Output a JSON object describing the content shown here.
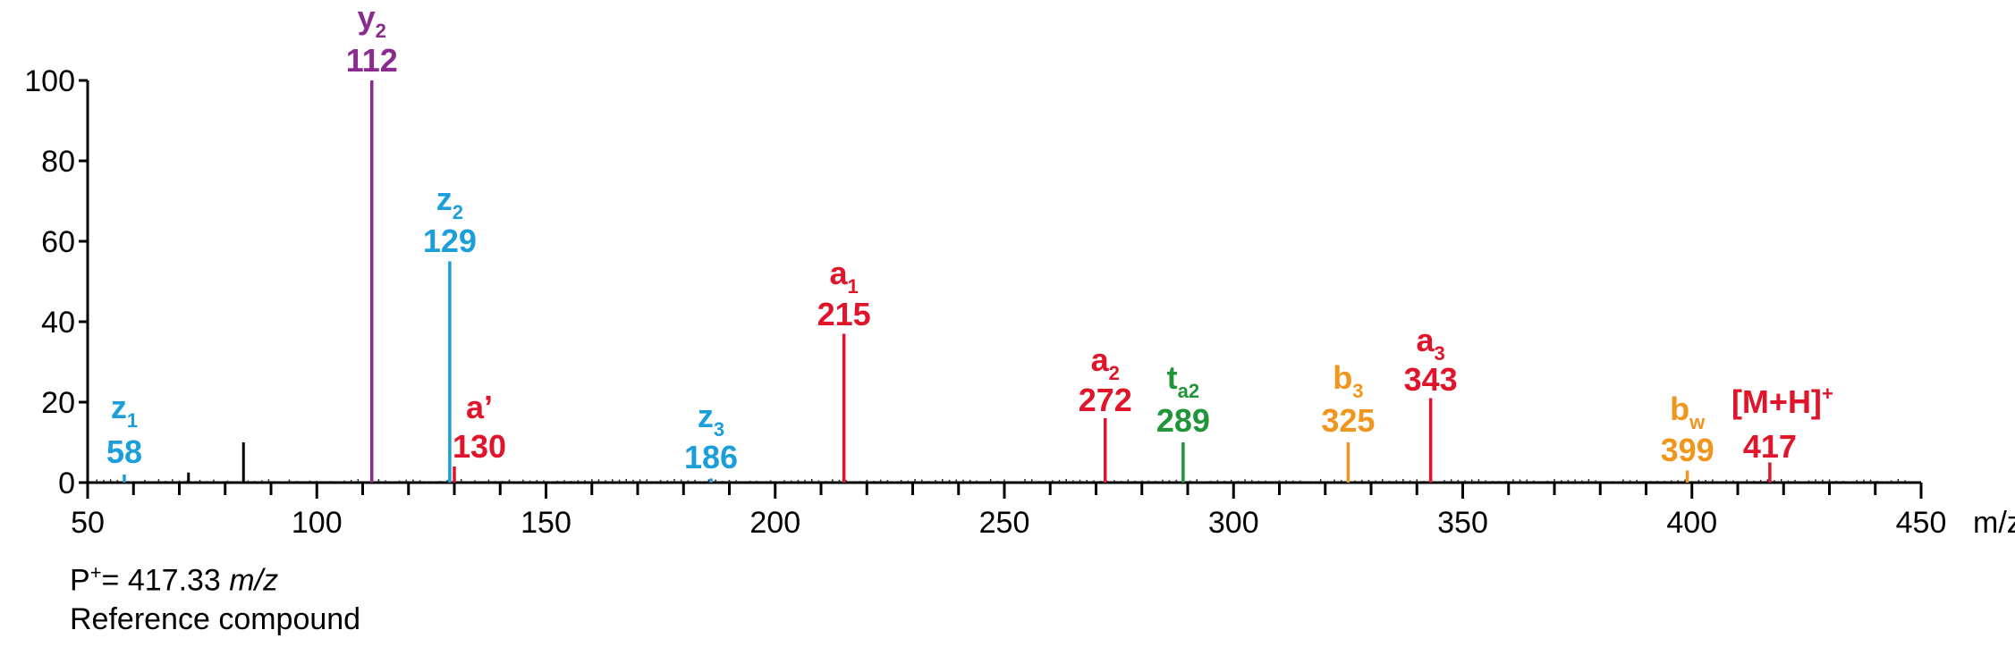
{
  "chart_data": {
    "type": "bar",
    "xlim": [
      50,
      450
    ],
    "ylim": [
      0,
      100
    ],
    "x_ticks": [
      50,
      100,
      150,
      200,
      250,
      300,
      350,
      400,
      450
    ],
    "x_tick_labels": [
      "50",
      "100",
      "150",
      "200",
      "250",
      "300",
      "350",
      "400",
      "450"
    ],
    "x_unit_label": "m/z",
    "y_ticks": [
      0,
      20,
      40,
      60,
      80,
      100
    ],
    "y_tick_labels": [
      "0",
      "20",
      "40",
      "60",
      "80",
      "100"
    ],
    "peaks": [
      {
        "mz": 58,
        "intensity": 2,
        "ion": "z",
        "sub": "1",
        "sup": "",
        "mz_label": "58",
        "color": "#1a9fdb"
      },
      {
        "mz": 112,
        "intensity": 100,
        "ion": "y",
        "sub": "2",
        "sup": "",
        "mz_label": "112",
        "color": "#8b2b8f"
      },
      {
        "mz": 129,
        "intensity": 55,
        "ion": "z",
        "sub": "2",
        "sup": "",
        "mz_label": "129",
        "color": "#1a9fdb"
      },
      {
        "mz": 130,
        "intensity": 4,
        "ion": "a’",
        "sub": "",
        "sup": "",
        "mz_label": "130",
        "color": "#e0142b"
      },
      {
        "mz": 186,
        "intensity": 1,
        "ion": "z",
        "sub": "3",
        "sup": "",
        "mz_label": "186",
        "color": "#1a9fdb"
      },
      {
        "mz": 215,
        "intensity": 37,
        "ion": "a",
        "sub": "1",
        "sup": "",
        "mz_label": "215",
        "color": "#e0142b"
      },
      {
        "mz": 272,
        "intensity": 16,
        "ion": "a",
        "sub": "2",
        "sup": "",
        "mz_label": "272",
        "color": "#e0142b"
      },
      {
        "mz": 289,
        "intensity": 10,
        "ion": "t",
        "sub": "a2",
        "sup": "",
        "mz_label": "289",
        "color": "#20953a"
      },
      {
        "mz": 325,
        "intensity": 10,
        "ion": "b",
        "sub": "3",
        "sup": "",
        "mz_label": "325",
        "color": "#f0961e"
      },
      {
        "mz": 343,
        "intensity": 21,
        "ion": "a",
        "sub": "3",
        "sup": "",
        "mz_label": "343",
        "color": "#e0142b"
      },
      {
        "mz": 399,
        "intensity": 3,
        "ion": "b",
        "sub": "w",
        "sup": "",
        "mz_label": "399",
        "color": "#f0961e"
      },
      {
        "mz": 417,
        "intensity": 5,
        "ion": "[M+H]",
        "sub": "",
        "sup": "+",
        "mz_label": "417",
        "color": "#e0142b"
      }
    ],
    "unlabeled_peaks": [
      {
        "mz": 72,
        "intensity": 2.5
      },
      {
        "mz": 84,
        "intensity": 10
      }
    ]
  },
  "footer": {
    "precursor_prefix": "P",
    "precursor_sup": "+",
    "precursor_value": "= 417.33 ",
    "precursor_unit": "m/z",
    "caption": "Reference compound"
  }
}
